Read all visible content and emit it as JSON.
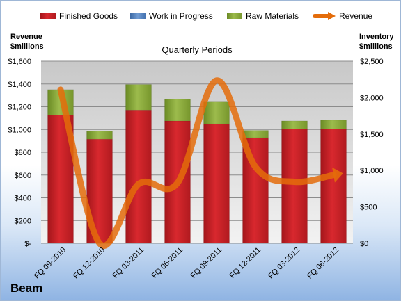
{
  "company": "Beam",
  "chart_data": {
    "type": "bar",
    "subtype": "stacked-bar-with-line",
    "title": "Quarterly Periods",
    "left_axis_title": [
      "Revenue",
      "$millions"
    ],
    "right_axis_title": [
      "Inventory",
      "$millions"
    ],
    "categories": [
      "FQ 09-2010",
      "FQ 12-2010",
      "FQ 03-2011",
      "FQ 06-2011",
      "FQ 09-2011",
      "FQ 12-2011",
      "FQ 03-2012",
      "FQ 06-2012"
    ],
    "series": [
      {
        "name": "Finished Goods",
        "axis": "right",
        "kind": "bar",
        "color": "#c0181e",
        "values": [
          1760,
          1430,
          1830,
          1680,
          1640,
          1450,
          1570,
          1570
        ]
      },
      {
        "name": "Work in Progress",
        "axis": "right",
        "kind": "bar",
        "color": "#4f81bd",
        "values": [
          0,
          0,
          0,
          0,
          0,
          0,
          0,
          0
        ]
      },
      {
        "name": "Raw Materials",
        "axis": "right",
        "kind": "bar",
        "color": "#7a9a2e",
        "values": [
          350,
          110,
          350,
          300,
          300,
          100,
          110,
          120
        ]
      },
      {
        "name": "Revenue",
        "axis": "left",
        "kind": "line",
        "color": "#e46c0a",
        "values": [
          1350,
          0,
          520,
          530,
          1430,
          670,
          540,
          600
        ]
      }
    ],
    "left_axis": {
      "min": 0,
      "max": 1600,
      "step": 200,
      "tick_labels": [
        "$-",
        "$200",
        "$400",
        "$600",
        "$800",
        "$1,000",
        "$1,200",
        "$1,400",
        "$1,600"
      ]
    },
    "right_axis": {
      "min": 0,
      "max": 2500,
      "step": 500,
      "tick_labels": [
        "$0",
        "$500",
        "$1,000",
        "$1,500",
        "$2,000",
        "$2,500"
      ]
    },
    "legend_position": "top",
    "grid": true
  }
}
